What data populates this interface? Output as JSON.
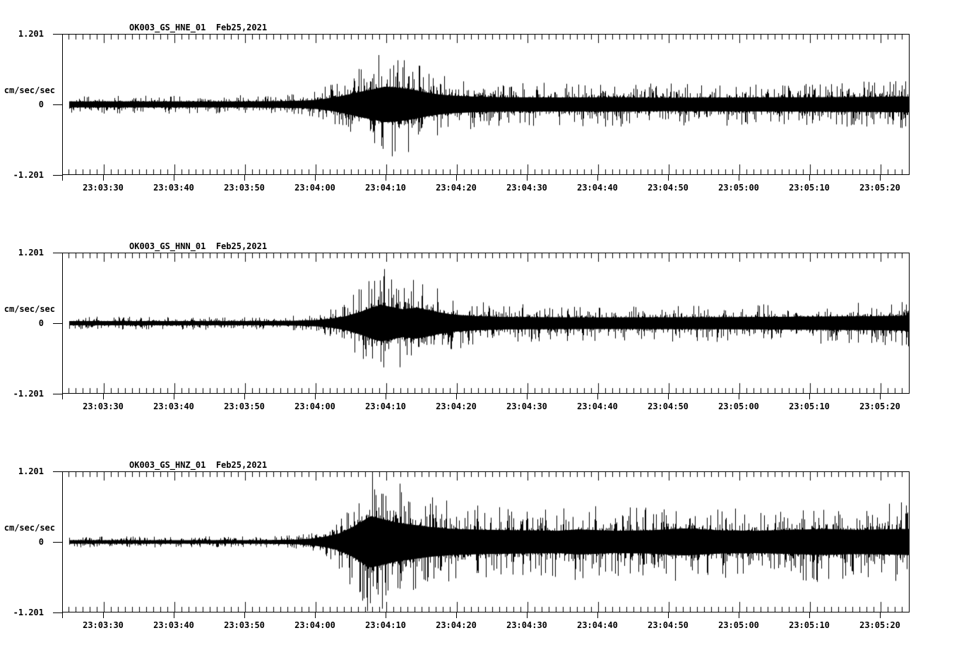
{
  "page": {
    "background": "#ffffff",
    "trace_color": "#000000",
    "station_event_date": "Feb25,2021"
  },
  "chart_data": [
    {
      "type": "line",
      "kind": "seismogram-trace",
      "title": "OK003_GS_HNE_01  Feb25,2021",
      "title_station_channel": "OK003_GS_HNE_01",
      "title_date": "Feb25,2021",
      "ylabel_units": "cm/sec/sec",
      "ylim": [
        -1.201,
        1.201
      ],
      "ytick_labels": [
        "1.201",
        "0",
        "-1.201"
      ],
      "xtick_labels": [
        "23:03:30",
        "23:03:40",
        "23:03:50",
        "23:04:00",
        "23:04:10",
        "23:04:20",
        "23:04:30",
        "23:04:40",
        "23:04:50",
        "23:05:00",
        "23:05:10",
        "23:05:20"
      ],
      "x_major_interval_sec": 10,
      "x_minor_interval_sec": 1,
      "grid": false,
      "legend": false,
      "seed": 101,
      "envelope_t_amp": [
        [
          0,
          0.065
        ],
        [
          25,
          0.065
        ],
        [
          31,
          0.072
        ],
        [
          34,
          0.082
        ],
        [
          36,
          0.1
        ],
        [
          38,
          0.14
        ],
        [
          40,
          0.2
        ],
        [
          42,
          0.27
        ],
        [
          44,
          0.33
        ],
        [
          45.5,
          0.38
        ],
        [
          47,
          0.37
        ],
        [
          49,
          0.33
        ],
        [
          51,
          0.27
        ],
        [
          53,
          0.22
        ],
        [
          55,
          0.19
        ],
        [
          58,
          0.17
        ],
        [
          62,
          0.155
        ],
        [
          70,
          0.15
        ],
        [
          78,
          0.155
        ],
        [
          85,
          0.145
        ],
        [
          95,
          0.15
        ],
        [
          105,
          0.155
        ],
        [
          112,
          0.16
        ],
        [
          120,
          0.17
        ]
      ]
    },
    {
      "type": "line",
      "kind": "seismogram-trace",
      "title": "OK003_GS_HNN_01  Feb25,2021",
      "title_station_channel": "OK003_GS_HNN_01",
      "title_date": "Feb25,2021",
      "ylabel_units": "cm/sec/sec",
      "ylim": [
        -1.201,
        1.201
      ],
      "ytick_labels": [
        "1.201",
        "0",
        "-1.201"
      ],
      "xtick_labels": [
        "23:03:30",
        "23:03:40",
        "23:03:50",
        "23:04:00",
        "23:04:10",
        "23:04:20",
        "23:04:30",
        "23:04:40",
        "23:04:50",
        "23:05:00",
        "23:05:10",
        "23:05:20"
      ],
      "x_major_interval_sec": 10,
      "x_minor_interval_sec": 1,
      "grid": false,
      "legend": false,
      "seed": 202,
      "envelope_t_amp": [
        [
          0,
          0.045
        ],
        [
          28,
          0.045
        ],
        [
          33,
          0.052
        ],
        [
          36,
          0.07
        ],
        [
          38,
          0.1
        ],
        [
          40,
          0.15
        ],
        [
          42,
          0.24
        ],
        [
          44,
          0.35
        ],
        [
          45,
          0.39
        ],
        [
          46.5,
          0.35
        ],
        [
          48,
          0.3
        ],
        [
          50,
          0.33
        ],
        [
          51.5,
          0.29
        ],
        [
          53,
          0.24
        ],
        [
          55,
          0.19
        ],
        [
          58,
          0.155
        ],
        [
          62,
          0.135
        ],
        [
          75,
          0.125
        ],
        [
          90,
          0.13
        ],
        [
          100,
          0.135
        ],
        [
          108,
          0.145
        ],
        [
          115,
          0.15
        ],
        [
          119,
          0.16
        ],
        [
          120,
          0.2
        ]
      ]
    },
    {
      "type": "line",
      "kind": "seismogram-trace",
      "title": "OK003_GS_HNZ_01  Feb25,2021",
      "title_station_channel": "OK003_GS_HNZ_01",
      "title_date": "Feb25,2021",
      "ylabel_units": "cm/sec/sec",
      "ylim": [
        -1.201,
        1.201
      ],
      "ytick_labels": [
        "1.201",
        "0",
        "-1.201"
      ],
      "xtick_labels": [
        "23:03:30",
        "23:03:40",
        "23:03:50",
        "23:04:00",
        "23:04:10",
        "23:04:20",
        "23:04:30",
        "23:04:40",
        "23:04:50",
        "23:05:00",
        "23:05:10",
        "23:05:20"
      ],
      "x_major_interval_sec": 10,
      "x_minor_interval_sec": 1,
      "grid": false,
      "legend": false,
      "seed": 303,
      "envelope_t_amp": [
        [
          0,
          0.038
        ],
        [
          28,
          0.038
        ],
        [
          33,
          0.05
        ],
        [
          35,
          0.07
        ],
        [
          37,
          0.11
        ],
        [
          39,
          0.18
        ],
        [
          41,
          0.32
        ],
        [
          42.5,
          0.46
        ],
        [
          43.5,
          0.55
        ],
        [
          45,
          0.5
        ],
        [
          46.5,
          0.44
        ],
        [
          48,
          0.4
        ],
        [
          50,
          0.36
        ],
        [
          52,
          0.32
        ],
        [
          55,
          0.28
        ],
        [
          60,
          0.26
        ],
        [
          65,
          0.25
        ],
        [
          70,
          0.24
        ],
        [
          73,
          0.27
        ],
        [
          78,
          0.24
        ],
        [
          83,
          0.25
        ],
        [
          88,
          0.29
        ],
        [
          93,
          0.25
        ],
        [
          98,
          0.24
        ],
        [
          103,
          0.26
        ],
        [
          108,
          0.28
        ],
        [
          112,
          0.26
        ],
        [
          116,
          0.27
        ],
        [
          120,
          0.28
        ]
      ]
    }
  ]
}
